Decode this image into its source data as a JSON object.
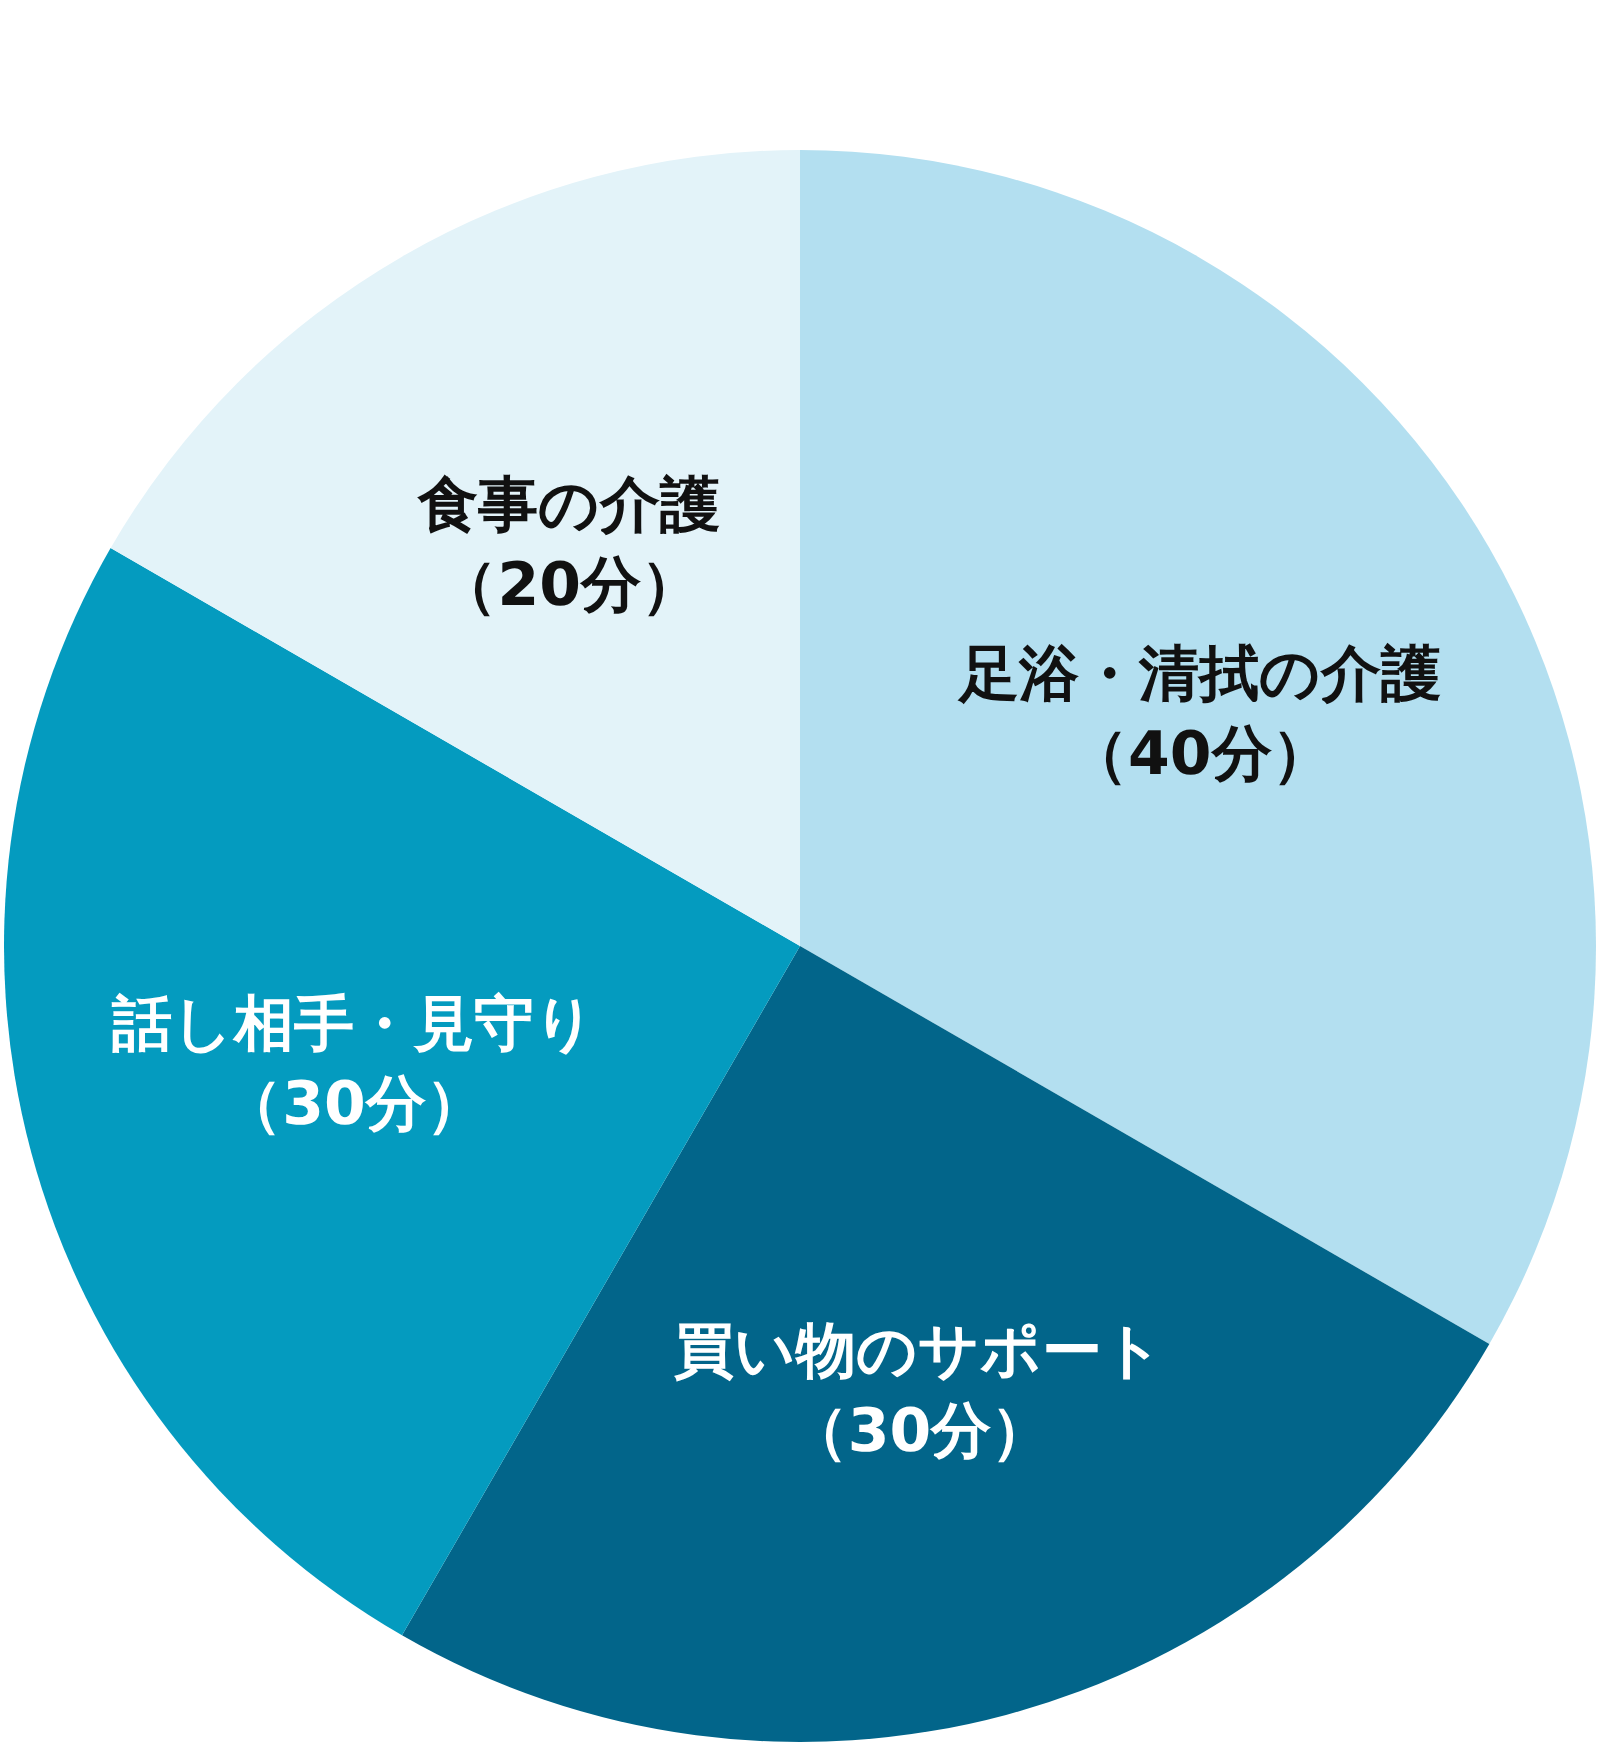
{
  "chart_data": {
    "type": "pie",
    "categories": [
      "足浴・清拭の介護",
      "買い物のサポート",
      "話し相手・見守り",
      "食事の介護"
    ],
    "values": [
      40,
      30,
      30,
      20
    ],
    "value_labels": [
      "（40分）",
      "（30分）",
      "（30分）",
      "（20分）"
    ],
    "colors": [
      "#b3dff0",
      "#02658a",
      "#049bbf",
      "#e3f3f9"
    ]
  }
}
